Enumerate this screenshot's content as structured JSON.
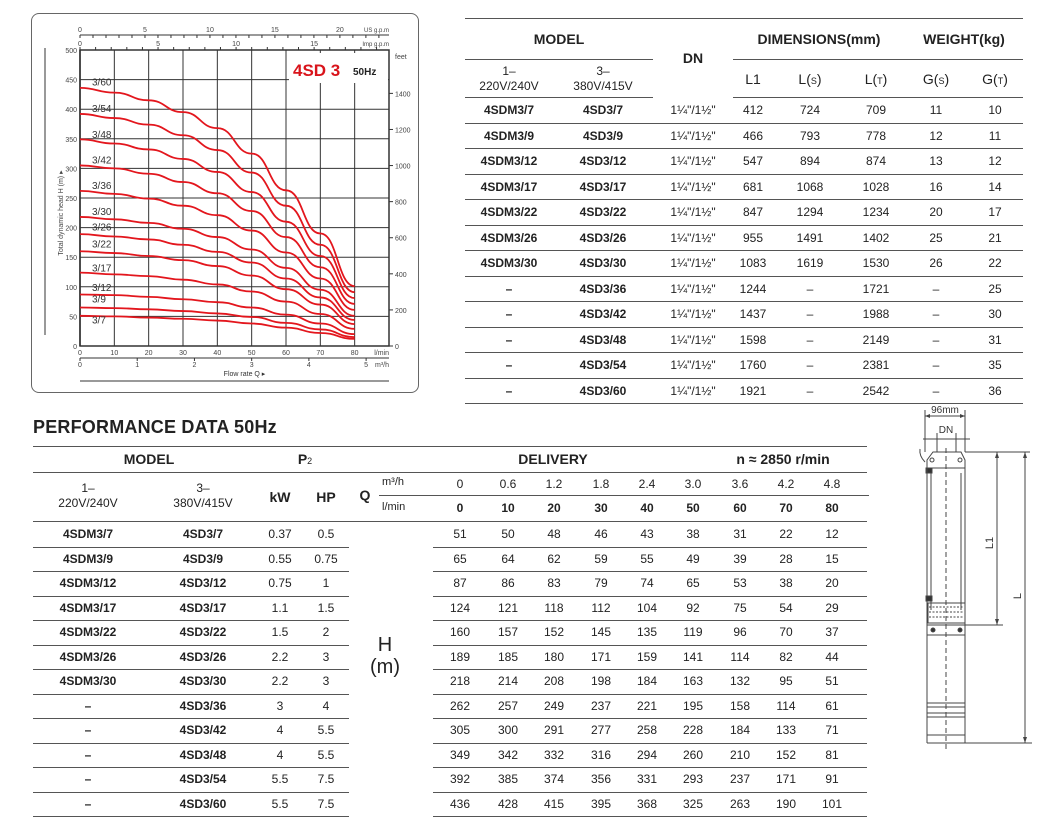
{
  "chart": {
    "title": "4SD 3",
    "frequency": "50Hz",
    "top_axis_us": {
      "label": "US g.p.m",
      "ticks": [
        "0",
        "5",
        "10",
        "15",
        "20"
      ]
    },
    "top_axis_imp": {
      "label": "Imp g.p.m",
      "ticks": [
        "0",
        "5",
        "10",
        "15"
      ]
    },
    "left_axis_label": "Total dynamic head H (m) ▸",
    "left_ticks": [
      "0",
      "50",
      "100",
      "150",
      "200",
      "250",
      "300",
      "350",
      "400",
      "450",
      "500"
    ],
    "right_axis_label": "feet",
    "right_ticks": [
      "0",
      "200",
      "400",
      "600",
      "800",
      "1000",
      "1200",
      "1400"
    ],
    "bottom_ticks_lmin": [
      "0",
      "10",
      "20",
      "30",
      "40",
      "50",
      "60",
      "70",
      "80"
    ],
    "bottom_unit_lmin": "l/min",
    "bottom_ticks_m3h": [
      "0",
      "1",
      "2",
      "3",
      "4",
      "5"
    ],
    "bottom_unit_m3h": "m³/h",
    "xlabel": "Flow rate Q ▸",
    "curve_labels": [
      "3/60",
      "3/54",
      "3/48",
      "3/42",
      "3/36",
      "3/30",
      "3/26",
      "3/22",
      "3/17",
      "3/12",
      "3/9",
      "3/7"
    ]
  },
  "chart_data": {
    "type": "line",
    "title": "4SD 3 50Hz",
    "xlabel": "Flow rate Q (l/min)",
    "ylabel": "Total dynamic head H (m)",
    "xlim": [
      0,
      90
    ],
    "ylim": [
      0,
      500
    ],
    "grid": true,
    "x": [
      0,
      10,
      20,
      30,
      40,
      50,
      60,
      70,
      80
    ],
    "series": [
      {
        "name": "3/7",
        "values": [
          51,
          50,
          48,
          46,
          43,
          38,
          31,
          22,
          12
        ]
      },
      {
        "name": "3/9",
        "values": [
          65,
          64,
          62,
          59,
          55,
          49,
          39,
          28,
          15
        ]
      },
      {
        "name": "3/12",
        "values": [
          87,
          86,
          83,
          79,
          74,
          65,
          53,
          38,
          20
        ]
      },
      {
        "name": "3/17",
        "values": [
          124,
          121,
          118,
          112,
          104,
          92,
          75,
          54,
          29
        ]
      },
      {
        "name": "3/22",
        "values": [
          160,
          157,
          152,
          145,
          135,
          119,
          96,
          70,
          37
        ]
      },
      {
        "name": "3/26",
        "values": [
          189,
          185,
          180,
          171,
          159,
          141,
          114,
          82,
          44
        ]
      },
      {
        "name": "3/30",
        "values": [
          218,
          214,
          208,
          198,
          184,
          163,
          132,
          95,
          51
        ]
      },
      {
        "name": "3/36",
        "values": [
          262,
          257,
          249,
          237,
          221,
          195,
          158,
          114,
          61
        ]
      },
      {
        "name": "3/42",
        "values": [
          305,
          300,
          291,
          277,
          258,
          228,
          184,
          133,
          71
        ]
      },
      {
        "name": "3/48",
        "values": [
          349,
          342,
          332,
          316,
          294,
          260,
          210,
          152,
          81
        ]
      },
      {
        "name": "3/54",
        "values": [
          392,
          385,
          374,
          356,
          331,
          293,
          237,
          171,
          91
        ]
      },
      {
        "name": "3/60",
        "values": [
          436,
          428,
          415,
          395,
          368,
          325,
          263,
          190,
          101
        ]
      }
    ],
    "secondary_axes": {
      "right": "feet (0–1400)",
      "top": [
        "US g.p.m (0–20)",
        "Imp g.p.m (0–15)"
      ],
      "bottom2": "m³/h (0–5)"
    }
  },
  "dimensions_table": {
    "headers": {
      "model": "MODEL",
      "single_phase": [
        "1–",
        "220V/240V"
      ],
      "three_phase": [
        "3–",
        "380V/415V"
      ],
      "dn": "DN",
      "dimensions": "DIMENSIONS(mm)",
      "weight": "WEIGHT(kg)",
      "l1": "L1",
      "ls": "L(S)",
      "lt": "L(T)",
      "gs": "G(S)",
      "gt": "G(T)"
    },
    "dn_value": "1¼\"/1½\"",
    "rows": [
      {
        "m1": "4SDM3/7",
        "m3": "4SD3/7",
        "l1": "412",
        "ls": "724",
        "lt": "709",
        "gs": "11",
        "gt": "10"
      },
      {
        "m1": "4SDM3/9",
        "m3": "4SD3/9",
        "l1": "466",
        "ls": "793",
        "lt": "778",
        "gs": "12",
        "gt": "11"
      },
      {
        "m1": "4SDM3/12",
        "m3": "4SD3/12",
        "l1": "547",
        "ls": "894",
        "lt": "874",
        "gs": "13",
        "gt": "12"
      },
      {
        "m1": "4SDM3/17",
        "m3": "4SD3/17",
        "l1": "681",
        "ls": "1068",
        "lt": "1028",
        "gs": "16",
        "gt": "14"
      },
      {
        "m1": "4SDM3/22",
        "m3": "4SD3/22",
        "l1": "847",
        "ls": "1294",
        "lt": "1234",
        "gs": "20",
        "gt": "17"
      },
      {
        "m1": "4SDM3/26",
        "m3": "4SD3/26",
        "l1": "955",
        "ls": "1491",
        "lt": "1402",
        "gs": "25",
        "gt": "21"
      },
      {
        "m1": "4SDM3/30",
        "m3": "4SD3/30",
        "l1": "1083",
        "ls": "1619",
        "lt": "1530",
        "gs": "26",
        "gt": "22"
      },
      {
        "m1": "–",
        "m3": "4SD3/36",
        "l1": "1244",
        "ls": "–",
        "lt": "1721",
        "gs": "–",
        "gt": "25"
      },
      {
        "m1": "–",
        "m3": "4SD3/42",
        "l1": "1437",
        "ls": "–",
        "lt": "1988",
        "gs": "–",
        "gt": "30"
      },
      {
        "m1": "–",
        "m3": "4SD3/48",
        "l1": "1598",
        "ls": "–",
        "lt": "2149",
        "gs": "–",
        "gt": "31"
      },
      {
        "m1": "–",
        "m3": "4SD3/54",
        "l1": "1760",
        "ls": "–",
        "lt": "2381",
        "gs": "–",
        "gt": "35"
      },
      {
        "m1": "–",
        "m3": "4SD3/60",
        "l1": "1921",
        "ls": "–",
        "lt": "2542",
        "gs": "–",
        "gt": "36"
      }
    ]
  },
  "performance": {
    "title": "PERFORMANCE DATA 50Hz",
    "headers": {
      "model": "MODEL",
      "p2": "P",
      "p2_sub": "2",
      "delivery": "DELIVERY",
      "speed": "n ≈ 2850 r/min",
      "single_phase": [
        "1–",
        "220V/240V"
      ],
      "three_phase": [
        "3–",
        "380V/415V"
      ],
      "kw": "kW",
      "hp": "HP",
      "q": "Q",
      "m3h": "m³/h",
      "lmin": "l/min",
      "h_label": "H",
      "h_unit": "(m)"
    },
    "q_m3h": [
      "0",
      "0.6",
      "1.2",
      "1.8",
      "2.4",
      "3.0",
      "3.6",
      "4.2",
      "4.8"
    ],
    "q_lmin": [
      "0",
      "10",
      "20",
      "30",
      "40",
      "50",
      "60",
      "70",
      "80"
    ],
    "rows": [
      {
        "m1": "4SDM3/7",
        "m3": "4SD3/7",
        "kw": "0.37",
        "hp": "0.5",
        "h": [
          "51",
          "50",
          "48",
          "46",
          "43",
          "38",
          "31",
          "22",
          "12"
        ]
      },
      {
        "m1": "4SDM3/9",
        "m3": "4SD3/9",
        "kw": "0.55",
        "hp": "0.75",
        "h": [
          "65",
          "64",
          "62",
          "59",
          "55",
          "49",
          "39",
          "28",
          "15"
        ]
      },
      {
        "m1": "4SDM3/12",
        "m3": "4SD3/12",
        "kw": "0.75",
        "hp": "1",
        "h": [
          "87",
          "86",
          "83",
          "79",
          "74",
          "65",
          "53",
          "38",
          "20"
        ]
      },
      {
        "m1": "4SDM3/17",
        "m3": "4SD3/17",
        "kw": "1.1",
        "hp": "1.5",
        "h": [
          "124",
          "121",
          "118",
          "112",
          "104",
          "92",
          "75",
          "54",
          "29"
        ]
      },
      {
        "m1": "4SDM3/22",
        "m3": "4SD3/22",
        "kw": "1.5",
        "hp": "2",
        "h": [
          "160",
          "157",
          "152",
          "145",
          "135",
          "119",
          "96",
          "70",
          "37"
        ]
      },
      {
        "m1": "4SDM3/26",
        "m3": "4SD3/26",
        "kw": "2.2",
        "hp": "3",
        "h": [
          "189",
          "185",
          "180",
          "171",
          "159",
          "141",
          "114",
          "82",
          "44"
        ]
      },
      {
        "m1": "4SDM3/30",
        "m3": "4SD3/30",
        "kw": "2.2",
        "hp": "3",
        "h": [
          "218",
          "214",
          "208",
          "198",
          "184",
          "163",
          "132",
          "95",
          "51"
        ]
      },
      {
        "m1": "–",
        "m3": "4SD3/36",
        "kw": "3",
        "hp": "4",
        "h": [
          "262",
          "257",
          "249",
          "237",
          "221",
          "195",
          "158",
          "114",
          "61"
        ]
      },
      {
        "m1": "–",
        "m3": "4SD3/42",
        "kw": "4",
        "hp": "5.5",
        "h": [
          "305",
          "300",
          "291",
          "277",
          "258",
          "228",
          "184",
          "133",
          "71"
        ]
      },
      {
        "m1": "–",
        "m3": "4SD3/48",
        "kw": "4",
        "hp": "5.5",
        "h": [
          "349",
          "342",
          "332",
          "316",
          "294",
          "260",
          "210",
          "152",
          "81"
        ]
      },
      {
        "m1": "–",
        "m3": "4SD3/54",
        "kw": "5.5",
        "hp": "7.5",
        "h": [
          "392",
          "385",
          "374",
          "356",
          "331",
          "293",
          "237",
          "171",
          "91"
        ]
      },
      {
        "m1": "–",
        "m3": "4SD3/60",
        "kw": "5.5",
        "hp": "7.5",
        "h": [
          "436",
          "428",
          "415",
          "395",
          "368",
          "325",
          "263",
          "190",
          "101"
        ]
      }
    ]
  },
  "drawing": {
    "width_label": "96mm",
    "dn_label": "DN",
    "l1_label": "L1",
    "l_label": "L"
  },
  "colors": {
    "curve": "#e3161d",
    "title_red": "#d9141b",
    "grid": "#333333",
    "rule": "#555555"
  }
}
